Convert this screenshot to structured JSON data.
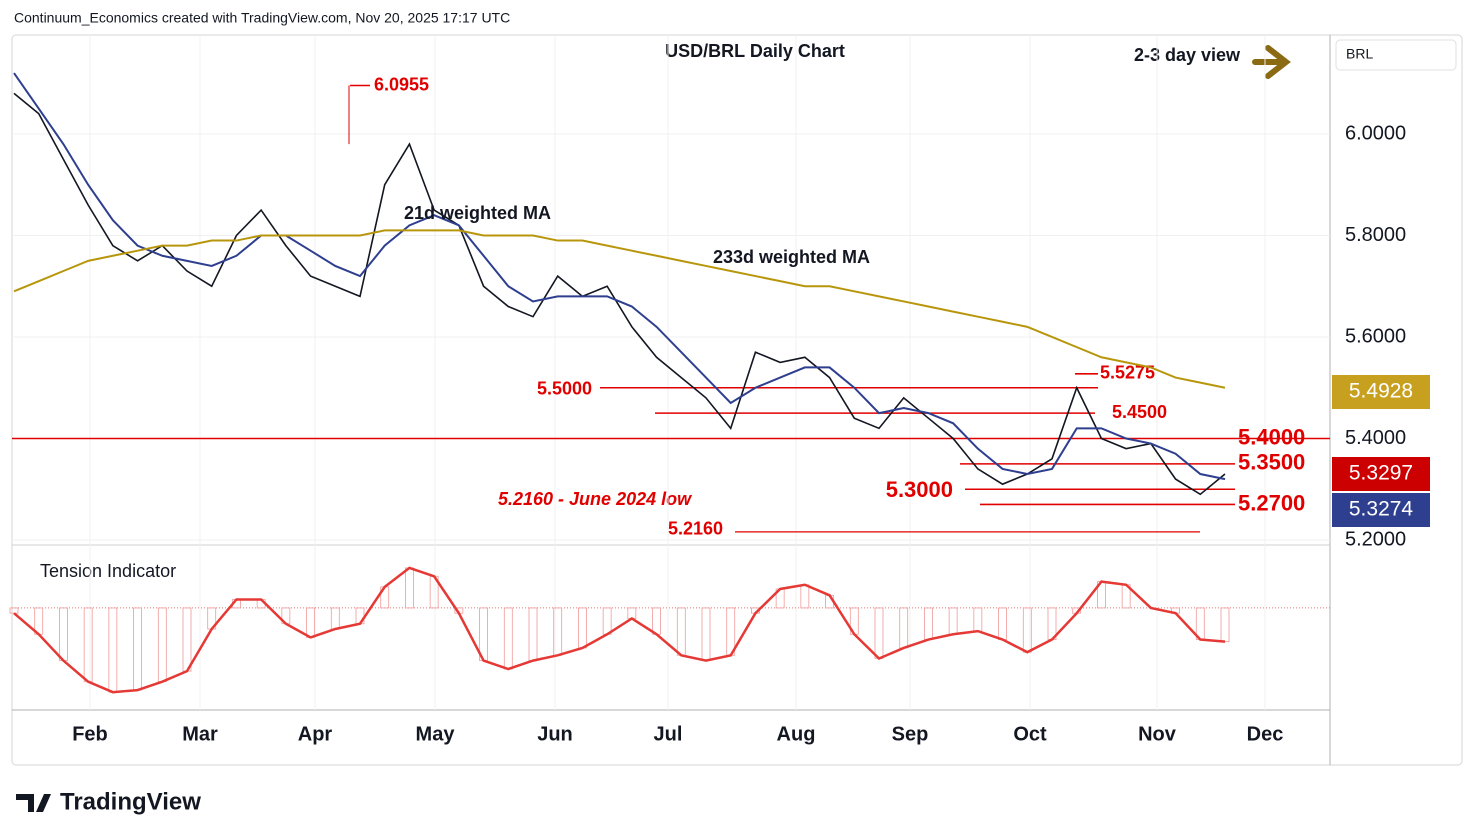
{
  "header": "Continuum_Economics created with TradingView.com, Nov 20, 2025 17:17 UTC",
  "symbol": "BRL",
  "brand": "TradingView",
  "chart_data": {
    "type": "line",
    "title": "USD/BRL Daily Chart",
    "view_label": "2-3 day view",
    "xticks": [
      "Feb",
      "Mar",
      "Apr",
      "May",
      "Jun",
      "Jul",
      "Aug",
      "Sep",
      "Oct",
      "Nov",
      "Dec"
    ],
    "ylim": [
      5.2,
      6.195
    ],
    "yticks": [
      {
        "value": 5.2,
        "label": "5.2000"
      },
      {
        "value": 5.4,
        "label": "5.4000"
      },
      {
        "value": 5.6,
        "label": "5.6000"
      },
      {
        "value": 5.8,
        "label": "5.8000"
      },
      {
        "value": 6.0,
        "label": "6.0000"
      }
    ],
    "series": [
      {
        "name": "USD/BRL",
        "color": "#131722",
        "values": [
          6.08,
          6.04,
          5.95,
          5.86,
          5.78,
          5.75,
          5.78,
          5.73,
          5.7,
          5.8,
          5.85,
          5.78,
          5.72,
          5.7,
          5.68,
          5.9,
          5.98,
          5.85,
          5.82,
          5.7,
          5.66,
          5.64,
          5.72,
          5.68,
          5.7,
          5.62,
          5.56,
          5.52,
          5.48,
          5.42,
          5.57,
          5.55,
          5.56,
          5.52,
          5.44,
          5.42,
          5.48,
          5.44,
          5.4,
          5.34,
          5.31,
          5.33,
          5.36,
          5.5,
          5.4,
          5.38,
          5.39,
          5.32,
          5.29,
          5.33
        ]
      },
      {
        "name": "21d weighted MA",
        "color": "#2f3f8f",
        "values": [
          6.12,
          6.05,
          5.98,
          5.9,
          5.83,
          5.78,
          5.76,
          5.75,
          5.74,
          5.76,
          5.8,
          5.8,
          5.77,
          5.74,
          5.72,
          5.78,
          5.82,
          5.84,
          5.82,
          5.76,
          5.7,
          5.67,
          5.68,
          5.68,
          5.68,
          5.66,
          5.62,
          5.57,
          5.52,
          5.47,
          5.5,
          5.52,
          5.54,
          5.54,
          5.5,
          5.45,
          5.46,
          5.45,
          5.43,
          5.38,
          5.34,
          5.33,
          5.34,
          5.42,
          5.42,
          5.4,
          5.39,
          5.37,
          5.33,
          5.32
        ]
      },
      {
        "name": "233d weighted MA",
        "color": "#b8960c",
        "values": [
          5.69,
          5.71,
          5.73,
          5.75,
          5.76,
          5.77,
          5.78,
          5.78,
          5.79,
          5.79,
          5.8,
          5.8,
          5.8,
          5.8,
          5.8,
          5.81,
          5.81,
          5.81,
          5.81,
          5.8,
          5.8,
          5.8,
          5.79,
          5.79,
          5.78,
          5.77,
          5.76,
          5.75,
          5.74,
          5.73,
          5.72,
          5.71,
          5.7,
          5.7,
          5.69,
          5.68,
          5.67,
          5.66,
          5.65,
          5.64,
          5.63,
          5.62,
          5.6,
          5.58,
          5.56,
          5.55,
          5.54,
          5.52,
          5.51,
          5.5
        ]
      }
    ],
    "levels": [
      {
        "value": 6.0955,
        "label": "6.0955"
      },
      {
        "value": 5.5275,
        "label": "5.5275"
      },
      {
        "value": 5.5,
        "label": "5.5000"
      },
      {
        "value": 5.45,
        "label": "5.4500"
      },
      {
        "value": 5.4,
        "label": "5.4000"
      },
      {
        "value": 5.35,
        "label": "5.3500"
      },
      {
        "value": 5.3,
        "label": "5.3000"
      },
      {
        "value": 5.27,
        "label": "5.2700"
      },
      {
        "value": 5.216,
        "label": "5.2160"
      }
    ],
    "low_note": "5.2160 - June 2024 low",
    "price_tags": [
      {
        "value": 5.4928,
        "label": "5.4928",
        "color": "#c8a020"
      },
      {
        "value": 5.3297,
        "label": "5.3297",
        "color": "#cc0000"
      },
      {
        "value": 5.3274,
        "label": "5.3274",
        "color": "#2f3f8f"
      }
    ],
    "indicator": {
      "title": "Tension Indicator",
      "color": "#e53935",
      "ylim": [
        -95,
        55
      ],
      "values": [
        -5,
        -25,
        -50,
        -70,
        -80,
        -78,
        -70,
        -60,
        -20,
        8,
        8,
        -15,
        -28,
        -20,
        -15,
        20,
        38,
        30,
        -5,
        -50,
        -58,
        -50,
        -45,
        -38,
        -25,
        -10,
        -25,
        -45,
        -50,
        -45,
        -5,
        18,
        22,
        12,
        -25,
        -48,
        -38,
        -30,
        -25,
        -22,
        -30,
        -42,
        -30,
        -5,
        25,
        22,
        0,
        -5,
        -30,
        -32
      ]
    }
  }
}
